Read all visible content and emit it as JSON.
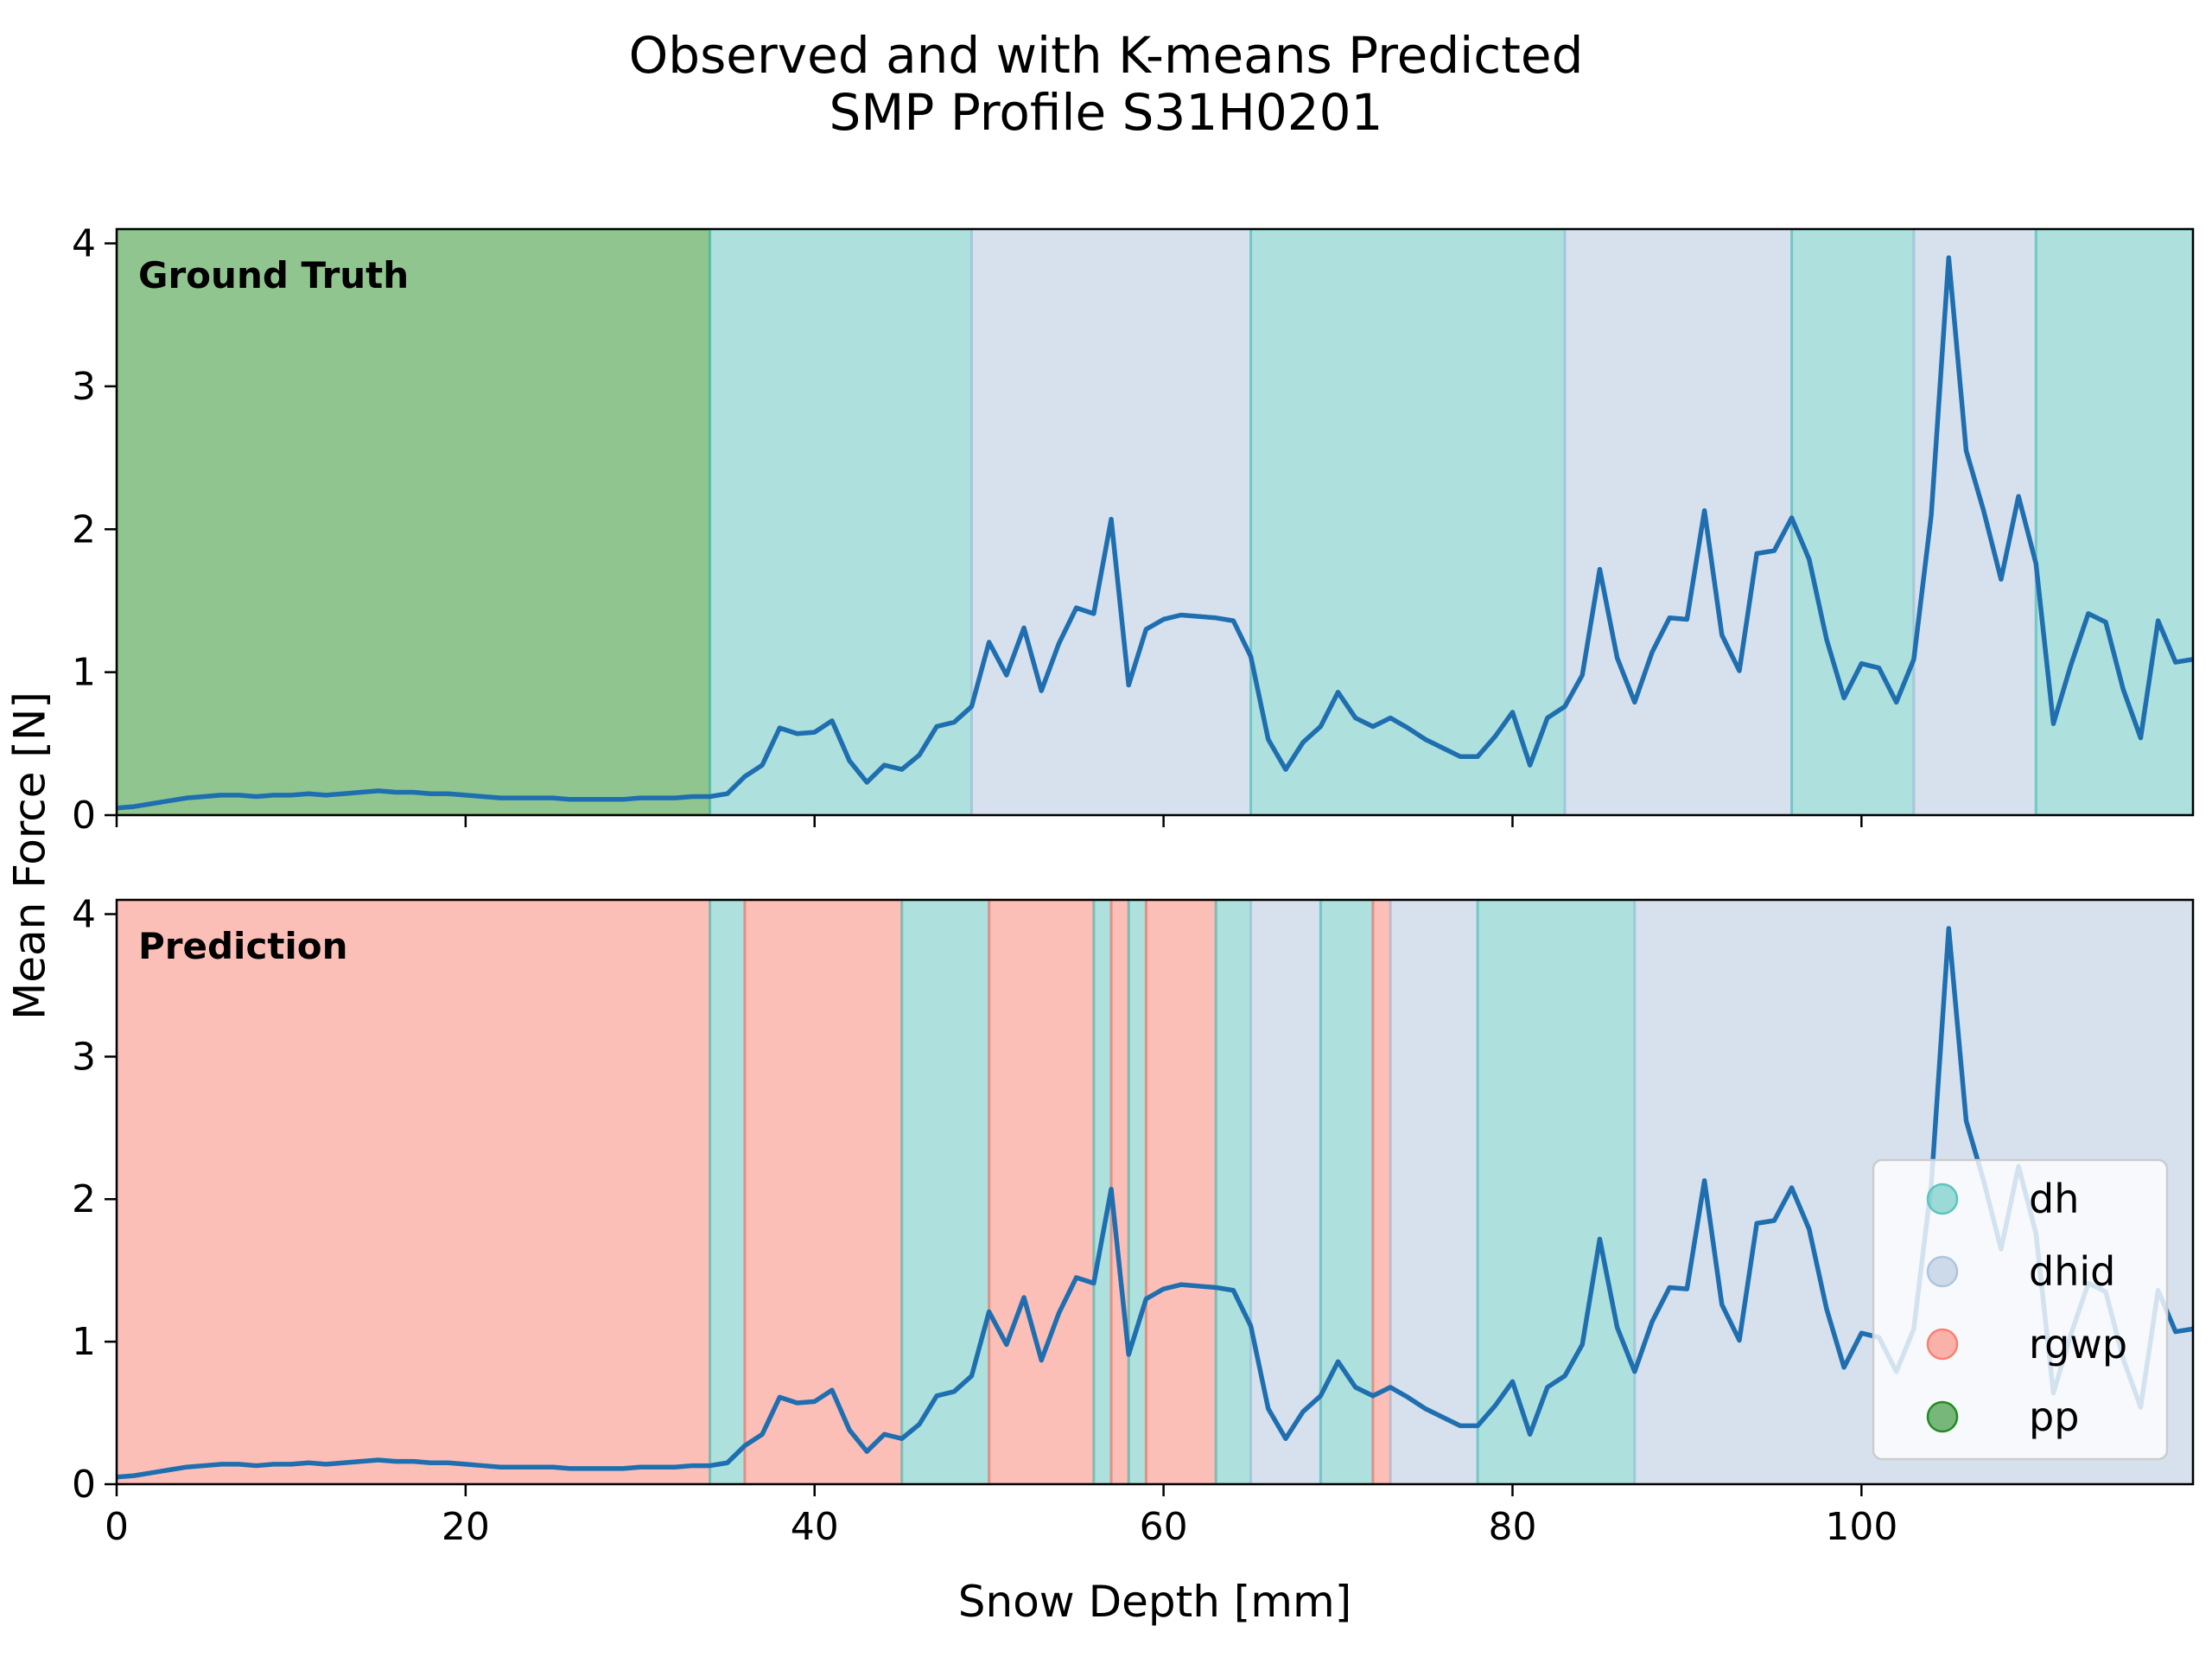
{
  "chart_data": {
    "type": "line",
    "title": "Observed and with K-means Predicted\nSMP Profile S31H0201",
    "xlabel": "Snow Depth [mm]",
    "ylabel": "Mean Force [N]",
    "xlim": [
      0,
      119
    ],
    "ylim": [
      0,
      4.1
    ],
    "x_ticks": [
      0,
      20,
      40,
      60,
      80,
      100
    ],
    "y_ticks": [
      0,
      1,
      2,
      3,
      4
    ],
    "grid": false,
    "legend_placement": "lower-right of bottom panel",
    "classes": [
      {
        "name": "dh",
        "color": "#5ec4be"
      },
      {
        "name": "dhid",
        "color": "#b0c4de"
      },
      {
        "name": "rgwp",
        "color": "#fa8072"
      },
      {
        "name": "pp",
        "color": "#228b22"
      }
    ],
    "series": [
      {
        "line_color": "#1f6fb0",
        "x": [
          0,
          1,
          2,
          3,
          4,
          5,
          6,
          7,
          8,
          9,
          10,
          11,
          12,
          13,
          14,
          15,
          16,
          17,
          18,
          19,
          20,
          21,
          22,
          23,
          24,
          25,
          26,
          27,
          28,
          29,
          30,
          31,
          32,
          33,
          34,
          35,
          36,
          37,
          38,
          39,
          40,
          41,
          42,
          43,
          44,
          45,
          46,
          47,
          48,
          49,
          50,
          51,
          52,
          53,
          54,
          55,
          56,
          57,
          58,
          59,
          60,
          61,
          62,
          63,
          64,
          65,
          66,
          67,
          68,
          69,
          70,
          71,
          72,
          73,
          74,
          75,
          76,
          77,
          78,
          79,
          80,
          81,
          82,
          83,
          84,
          85,
          86,
          87,
          88,
          89,
          90,
          91,
          92,
          93,
          94,
          95,
          96,
          97,
          98,
          99,
          100,
          101,
          102,
          103,
          104,
          105,
          106,
          107,
          108,
          109,
          110,
          111,
          112,
          113,
          114,
          115,
          116,
          117,
          118,
          119
        ],
        "y": [
          0.05,
          0.06,
          0.08,
          0.1,
          0.12,
          0.13,
          0.14,
          0.14,
          0.13,
          0.14,
          0.14,
          0.15,
          0.14,
          0.15,
          0.16,
          0.17,
          0.16,
          0.16,
          0.15,
          0.15,
          0.14,
          0.13,
          0.12,
          0.12,
          0.12,
          0.12,
          0.11,
          0.11,
          0.11,
          0.11,
          0.12,
          0.12,
          0.12,
          0.13,
          0.13,
          0.15,
          0.27,
          0.35,
          0.61,
          0.57,
          0.58,
          0.66,
          0.38,
          0.23,
          0.35,
          0.32,
          0.42,
          0.62,
          0.65,
          0.76,
          1.21,
          0.98,
          1.31,
          0.87,
          1.2,
          1.45,
          1.41,
          2.07,
          0.91,
          1.3,
          1.37,
          1.4,
          1.39,
          1.38,
          1.36,
          1.11,
          0.53,
          0.32,
          0.51,
          0.62,
          0.86,
          0.68,
          0.62,
          0.68,
          0.61,
          0.53,
          0.47,
          0.41,
          0.41,
          0.55,
          0.72,
          0.35,
          0.68,
          0.76,
          0.98,
          1.72,
          1.1,
          0.79,
          1.14,
          1.38,
          1.37,
          2.13,
          1.26,
          1.01,
          1.83,
          1.85,
          2.08,
          1.79,
          1.23,
          0.82,
          1.06,
          1.03,
          0.79,
          1.09,
          2.1,
          3.9,
          2.55,
          2.13,
          1.65,
          2.23,
          1.76,
          0.64,
          1.05,
          1.41,
          1.35,
          0.88,
          0.54,
          1.36,
          1.07,
          1.09
        ]
      }
    ],
    "panels": [
      {
        "label": "Ground Truth",
        "segments": [
          {
            "class": "pp",
            "from": 0,
            "to": 34
          },
          {
            "class": "dh",
            "from": 34,
            "to": 49
          },
          {
            "class": "dhid",
            "from": 49,
            "to": 65
          },
          {
            "class": "dh",
            "from": 65,
            "to": 83
          },
          {
            "class": "dhid",
            "from": 83,
            "to": 96
          },
          {
            "class": "dh",
            "from": 96,
            "to": 103
          },
          {
            "class": "dhid",
            "from": 103,
            "to": 110
          },
          {
            "class": "dh",
            "from": 110,
            "to": 119
          }
        ]
      },
      {
        "label": "Prediction",
        "segments": [
          {
            "class": "rgwp",
            "from": 0,
            "to": 34
          },
          {
            "class": "dh",
            "from": 34,
            "to": 36
          },
          {
            "class": "rgwp",
            "from": 36,
            "to": 45
          },
          {
            "class": "dh",
            "from": 45,
            "to": 50
          },
          {
            "class": "rgwp",
            "from": 50,
            "to": 56
          },
          {
            "class": "dh",
            "from": 56,
            "to": 57
          },
          {
            "class": "rgwp",
            "from": 57,
            "to": 58
          },
          {
            "class": "dh",
            "from": 58,
            "to": 59
          },
          {
            "class": "rgwp",
            "from": 59,
            "to": 63
          },
          {
            "class": "dh",
            "from": 63,
            "to": 65
          },
          {
            "class": "dhid",
            "from": 65,
            "to": 69
          },
          {
            "class": "dh",
            "from": 69,
            "to": 72
          },
          {
            "class": "rgwp",
            "from": 72,
            "to": 73
          },
          {
            "class": "dhid",
            "from": 73,
            "to": 78
          },
          {
            "class": "dh",
            "from": 78,
            "to": 87
          },
          {
            "class": "dhid",
            "from": 87,
            "to": 119
          }
        ]
      }
    ]
  }
}
